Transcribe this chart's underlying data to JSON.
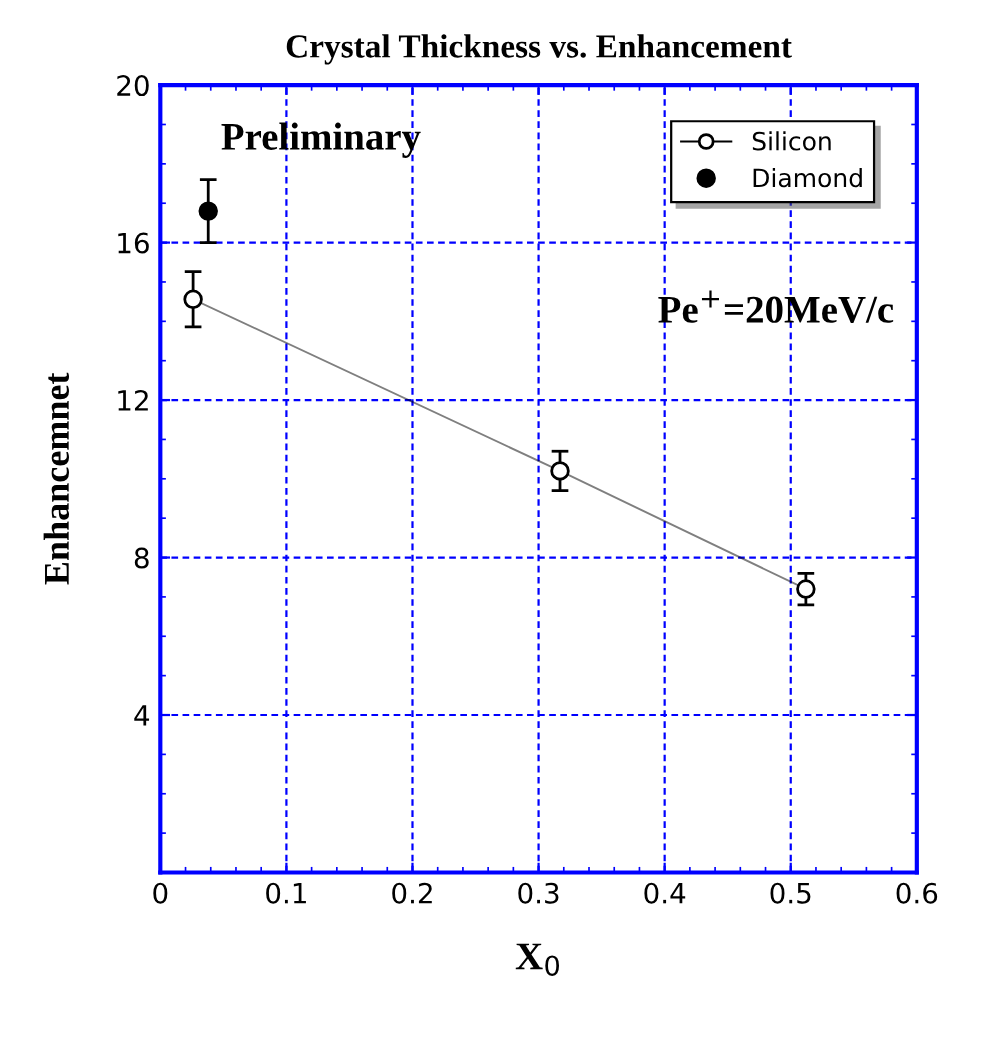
{
  "chart_data": {
    "type": "line",
    "title": "Crystal Thickness vs. Enhancement",
    "xlabel": "X$_{0}$",
    "ylabel": "Enhancemnet",
    "annotations": [
      "Preliminary",
      "Pe$^{+}$=20MeV/c"
    ],
    "series": [
      {
        "name": "Silicon",
        "color": "#000000",
        "x": [
          0.026,
          0.317,
          0.512
        ],
        "values": [
          14.56,
          10.2,
          7.2
        ],
        "errors": [
          0.7,
          0.5,
          0.4
        ]
      },
      {
        "name": "Diamond",
        "type": "scatter",
        "color": "#000000",
        "x": [
          0.038
        ],
        "values": [
          16.8
        ],
        "errors": [
          0.8
        ]
      }
    ],
    "xlim": [
      0,
      0.6
    ],
    "xticks": [
      0,
      0.1,
      0.2,
      0.3,
      0.4,
      0.5,
      0.6
    ],
    "ylim": [
      0,
      20
    ],
    "yticks": [
      {
        "value": 0,
        "label": null
      },
      4,
      8,
      12,
      16,
      20
    ],
    "grid": true,
    "legend": "top right",
    "marker": "circle"
  }
}
